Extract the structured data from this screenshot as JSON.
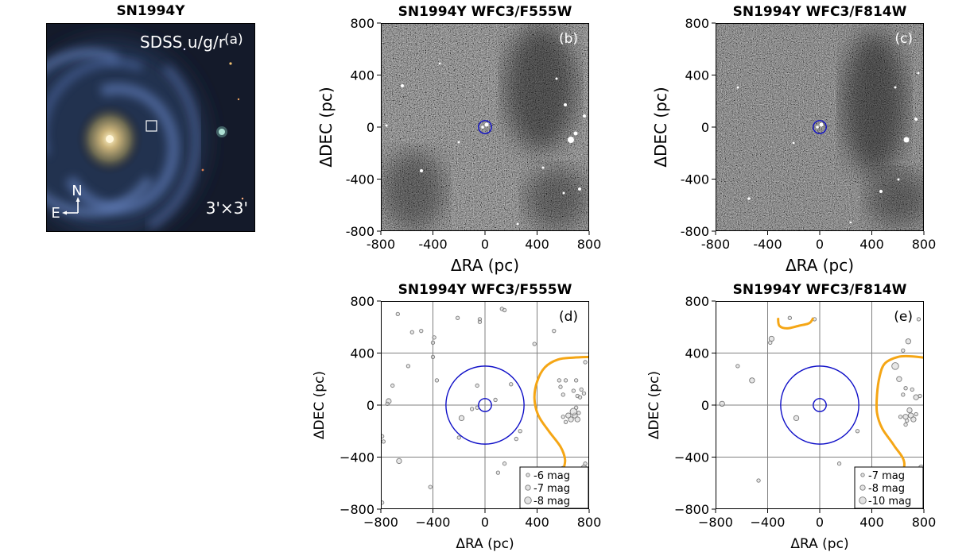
{
  "chart_data": [
    {
      "type": "image",
      "title": "SN1994Y",
      "panel_tag": "(a)",
      "label": "SDSS u/g/r",
      "fov": "3'×3'",
      "compass": {
        "north": "N",
        "east": "E"
      }
    },
    {
      "type": "image",
      "title": "SN1994Y WFC3/F555W",
      "panel_tag": "(b)",
      "xlabel": "ΔRA (pc)",
      "ylabel": "ΔDEC (pc)",
      "xlim": [
        -800,
        800
      ],
      "ylim": [
        -800,
        800
      ],
      "xticks": [
        "-800",
        "-400",
        "0",
        "400",
        "800"
      ],
      "yticks": [
        "800",
        "400",
        "0",
        "-400",
        "-800"
      ],
      "circles": [
        {
          "x": 0,
          "y": 0,
          "r": 50,
          "color": "#1010c8"
        }
      ]
    },
    {
      "type": "image",
      "title": "SN1994Y WFC3/F814W",
      "panel_tag": "(c)",
      "xlabel": "ΔRA (pc)",
      "ylabel": "ΔDEC (pc)",
      "xlim": [
        -800,
        800
      ],
      "ylim": [
        -800,
        800
      ],
      "xticks": [
        "-800",
        "-400",
        "0",
        "400",
        "800"
      ],
      "yticks": [
        "800",
        "400",
        "0",
        "-400",
        "-800"
      ],
      "circles": [
        {
          "x": 0,
          "y": 0,
          "r": 50,
          "color": "#1010c8"
        }
      ]
    },
    {
      "type": "scatter",
      "title": "SN1994Y WFC3/F555W",
      "panel_tag": "(d)",
      "xlabel": "ΔRA (pc)",
      "ylabel": "ΔDEC (pc)",
      "xlim": [
        -800,
        800
      ],
      "ylim": [
        -800,
        800
      ],
      "xticks": [
        "−800",
        "−400",
        "0",
        "400",
        "800"
      ],
      "yticks": [
        "800",
        "400",
        "0",
        "−400",
        "−800"
      ],
      "grid": true,
      "circles": [
        {
          "x": 0,
          "y": 0,
          "r": 50,
          "color": "#1010c8"
        },
        {
          "x": 0,
          "y": 0,
          "r": 300,
          "color": "#1010c8"
        }
      ],
      "contour": [
        [
          600,
          -500
        ],
        [
          615,
          -420
        ],
        [
          580,
          -320
        ],
        [
          490,
          -200
        ],
        [
          410,
          -80
        ],
        [
          380,
          50
        ],
        [
          400,
          180
        ],
        [
          460,
          290
        ],
        [
          560,
          350
        ],
        [
          680,
          365
        ],
        [
          800,
          370
        ]
      ],
      "legend": {
        "position": "lower-right",
        "entries": [
          {
            "label": "-6 mag",
            "size": 1
          },
          {
            "label": "-7 mag",
            "size": 2
          },
          {
            "label": "-8 mag",
            "size": 3
          }
        ]
      },
      "points": [
        [
          -670,
          700,
          1
        ],
        [
          -560,
          560,
          1
        ],
        [
          -490,
          570,
          1
        ],
        [
          -590,
          300,
          1
        ],
        [
          -710,
          150,
          1
        ],
        [
          -400,
          370,
          1
        ],
        [
          -390,
          520,
          1
        ],
        [
          -400,
          480,
          1
        ],
        [
          -210,
          670,
          1
        ],
        [
          -40,
          660,
          1
        ],
        [
          -40,
          640,
          1
        ],
        [
          130,
          740,
          1
        ],
        [
          150,
          730,
          1
        ],
        [
          -370,
          190,
          1
        ],
        [
          -740,
          30,
          2
        ],
        [
          -750,
          10,
          1
        ],
        [
          -180,
          -100,
          2
        ],
        [
          -660,
          -430,
          2
        ],
        [
          -420,
          -630,
          1
        ],
        [
          -200,
          -250,
          1
        ],
        [
          -100,
          -30,
          1
        ],
        [
          -60,
          -20,
          1
        ],
        [
          -60,
          150,
          1
        ],
        [
          80,
          40,
          1
        ],
        [
          150,
          -450,
          1
        ],
        [
          100,
          -520,
          1
        ],
        [
          240,
          -260,
          1
        ],
        [
          270,
          -200,
          1
        ],
        [
          200,
          160,
          1
        ],
        [
          380,
          470,
          1
        ],
        [
          530,
          570,
          1
        ],
        [
          620,
          190,
          1
        ],
        [
          570,
          190,
          1
        ],
        [
          580,
          140,
          1
        ],
        [
          600,
          80,
          1
        ],
        [
          700,
          190,
          1
        ],
        [
          710,
          70,
          1
        ],
        [
          760,
          90,
          1
        ],
        [
          740,
          120,
          1
        ],
        [
          730,
          60,
          1
        ],
        [
          680,
          110,
          1
        ],
        [
          690,
          -80,
          2
        ],
        [
          660,
          -110,
          2
        ],
        [
          710,
          -110,
          2
        ],
        [
          640,
          -80,
          2
        ],
        [
          680,
          -50,
          3
        ],
        [
          720,
          -60,
          1
        ],
        [
          700,
          -20,
          1
        ],
        [
          620,
          -130,
          1
        ],
        [
          600,
          -90,
          1
        ],
        [
          760,
          -480,
          2
        ],
        [
          770,
          -450,
          1
        ],
        [
          600,
          -490,
          2
        ],
        [
          -790,
          -240,
          1
        ],
        [
          -780,
          -280,
          1
        ],
        [
          -790,
          -750,
          1
        ],
        [
          770,
          330,
          1
        ]
      ]
    },
    {
      "type": "scatter",
      "title": "SN1994Y WFC3/F814W",
      "panel_tag": "(e)",
      "xlabel": "ΔRA (pc)",
      "ylabel": "ΔDEC (pc)",
      "xlim": [
        -800,
        800
      ],
      "ylim": [
        -800,
        800
      ],
      "xticks": [
        "−800",
        "−400",
        "0",
        "400",
        "800"
      ],
      "yticks": [
        "800",
        "400",
        "0",
        "−400",
        "−800"
      ],
      "grid": true,
      "circles": [
        {
          "x": 0,
          "y": 0,
          "r": 50,
          "color": "#1010c8"
        },
        {
          "x": 0,
          "y": 0,
          "r": 300,
          "color": "#1010c8"
        }
      ],
      "contours": [
        [
          [
            -320,
            670
          ],
          [
            -310,
            610
          ],
          [
            -250,
            590
          ],
          [
            -160,
            610
          ],
          [
            -80,
            630
          ],
          [
            -50,
            670
          ]
        ],
        [
          [
            580,
            -800
          ],
          [
            590,
            -640
          ],
          [
            650,
            -450
          ],
          [
            570,
            -310
          ],
          [
            480,
            -180
          ],
          [
            440,
            -60
          ],
          [
            440,
            80
          ],
          [
            460,
            220
          ],
          [
            500,
            320
          ],
          [
            600,
            370
          ],
          [
            700,
            375
          ],
          [
            800,
            365
          ]
        ]
      ],
      "legend": {
        "position": "lower-right",
        "entries": [
          {
            "label": "-7 mag",
            "size": 1
          },
          {
            "label": "-8 mag",
            "size": 2
          },
          {
            "label": "-10 mag",
            "size": 3
          }
        ]
      },
      "points": [
        [
          -230,
          670,
          1
        ],
        [
          -40,
          660,
          1
        ],
        [
          -370,
          510,
          2
        ],
        [
          -380,
          480,
          1
        ],
        [
          -630,
          300,
          1
        ],
        [
          -520,
          190,
          2
        ],
        [
          -750,
          10,
          2
        ],
        [
          -180,
          -100,
          2
        ],
        [
          -470,
          -580,
          1
        ],
        [
          150,
          -450,
          1
        ],
        [
          290,
          -200,
          1
        ],
        [
          580,
          300,
          3
        ],
        [
          610,
          200,
          2
        ],
        [
          640,
          420,
          1
        ],
        [
          660,
          130,
          1
        ],
        [
          640,
          80,
          1
        ],
        [
          710,
          120,
          1
        ],
        [
          740,
          60,
          2
        ],
        [
          770,
          70,
          1
        ],
        [
          680,
          490,
          2
        ],
        [
          760,
          660,
          1
        ],
        [
          700,
          -80,
          2
        ],
        [
          660,
          -90,
          2
        ],
        [
          720,
          -110,
          2
        ],
        [
          690,
          -40,
          2
        ],
        [
          740,
          -70,
          1
        ],
        [
          670,
          -120,
          1
        ],
        [
          620,
          -90,
          1
        ],
        [
          660,
          -150,
          1
        ],
        [
          780,
          -480,
          2
        ]
      ]
    }
  ]
}
